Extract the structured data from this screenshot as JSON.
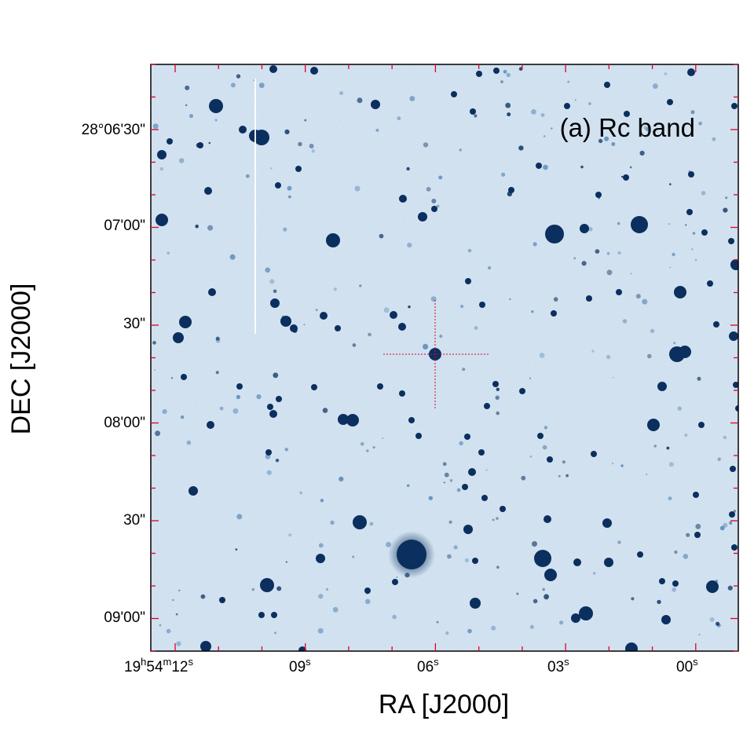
{
  "figure": {
    "panel_label": "(a) Rc band",
    "x_axis_title": "RA [J2000]",
    "y_axis_title": "DEC [J2000]",
    "colors": {
      "sky_background": "#cfe0ef",
      "star": "#0b2f5e",
      "faint_star": "#5d8ab8",
      "tick": "#e0002a",
      "crosshair": "#e0002a",
      "frame": "#000000"
    }
  },
  "chart_data": {
    "type": "other",
    "description_of_marks": "astronomical image with RA/DEC coordinate ticks",
    "x_ticks": [
      {
        "label": "19",
        "sup1": "h",
        "mid": "54",
        "sup2": "m",
        "tail": "12",
        "sup3": "s"
      },
      {
        "label": "09",
        "sup": "s"
      },
      {
        "label": "06",
        "sup": "s"
      },
      {
        "label": "03",
        "sup": "s"
      },
      {
        "label": "00",
        "sup": "s"
      }
    ],
    "y_ticks": [
      "28°06'30\"",
      "07'00\"",
      "30\"",
      "08'00\"",
      "30\"",
      "09'00\""
    ]
  }
}
